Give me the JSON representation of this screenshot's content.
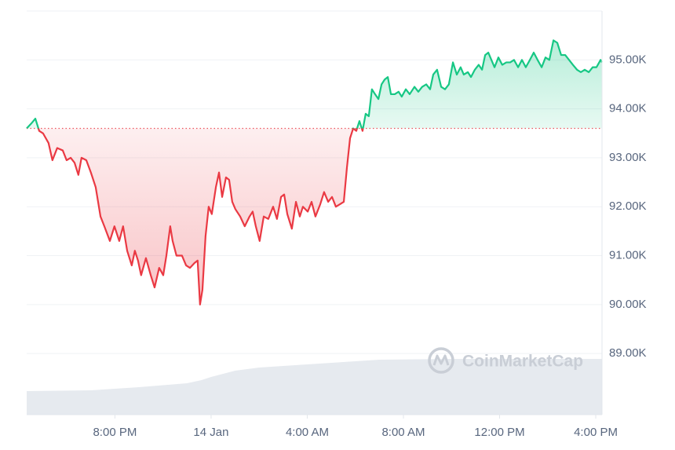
{
  "chart_data": {
    "type": "line",
    "watermark": "CoinMarketCap",
    "baseline": 93600,
    "up_color": "#16c784",
    "down_color": "#ea3943",
    "grid": true,
    "xlim": [
      -7.67,
      16.26
    ],
    "xticks": [
      {
        "value": -4,
        "label": "8:00 PM"
      },
      {
        "value": 0,
        "label": "14 Jan"
      },
      {
        "value": 4,
        "label": "4:00 AM"
      },
      {
        "value": 8,
        "label": "8:00 AM"
      },
      {
        "value": 12,
        "label": "12:00 PM"
      },
      {
        "value": 16,
        "label": "4:00 PM"
      }
    ],
    "ylim": [
      87750,
      96000
    ],
    "yticks": [
      {
        "value": 89000,
        "label": "89.00K"
      },
      {
        "value": 90000,
        "label": "90.00K"
      },
      {
        "value": 91000,
        "label": "91.00K"
      },
      {
        "value": 92000,
        "label": "92.00K"
      },
      {
        "value": 93000,
        "label": "93.00K"
      },
      {
        "value": 94000,
        "label": "94.00K"
      },
      {
        "value": 95000,
        "label": "95.00K"
      }
    ],
    "y2lim": [
      0,
      514
    ],
    "x": [
      -7.67,
      -7.48,
      -7.31,
      -7.15,
      -6.99,
      -6.76,
      -6.6,
      -6.4,
      -6.17,
      -6.01,
      -5.84,
      -5.68,
      -5.52,
      -5.39,
      -5.19,
      -5.0,
      -4.8,
      -4.6,
      -4.44,
      -4.21,
      -4.02,
      -3.82,
      -3.66,
      -3.49,
      -3.3,
      -3.17,
      -3.04,
      -2.91,
      -2.71,
      -2.51,
      -2.35,
      -2.16,
      -1.99,
      -1.86,
      -1.7,
      -1.6,
      -1.44,
      -1.21,
      -1.04,
      -0.88,
      -0.69,
      -0.56,
      -0.46,
      -0.36,
      -0.23,
      -0.1,
      0.03,
      0.2,
      0.33,
      0.46,
      0.62,
      0.75,
      0.88,
      1.01,
      1.21,
      1.4,
      1.6,
      1.73,
      1.86,
      2.02,
      2.19,
      2.38,
      2.58,
      2.74,
      2.91,
      3.04,
      3.17,
      3.36,
      3.53,
      3.69,
      3.82,
      4.02,
      4.18,
      4.34,
      4.54,
      4.7,
      4.87,
      5.03,
      5.19,
      5.36,
      5.52,
      5.65,
      5.78,
      5.91,
      6.04,
      6.17,
      6.3,
      6.43,
      6.56,
      6.69,
      6.82,
      6.96,
      7.09,
      7.22,
      7.35,
      7.48,
      7.64,
      7.8,
      7.93,
      8.1,
      8.26,
      8.46,
      8.62,
      8.78,
      8.95,
      9.11,
      9.24,
      9.4,
      9.57,
      9.73,
      9.89,
      10.06,
      10.22,
      10.38,
      10.51,
      10.68,
      10.81,
      10.97,
      11.13,
      11.27,
      11.4,
      11.53,
      11.66,
      11.79,
      11.95,
      12.11,
      12.28,
      12.44,
      12.6,
      12.77,
      12.93,
      13.09,
      13.26,
      13.42,
      13.58,
      13.75,
      13.91,
      14.07,
      14.24,
      14.4,
      14.56,
      14.73,
      14.89,
      15.05,
      15.22,
      15.38,
      15.54,
      15.71,
      15.87,
      16.03,
      16.2,
      16.26
    ],
    "series": [
      {
        "values": [
          93600,
          93700,
          93800,
          93550,
          93500,
          93300,
          92950,
          93200,
          93150,
          92950,
          93000,
          92900,
          92650,
          93000,
          92950,
          92700,
          92400,
          91800,
          91600,
          91300,
          91600,
          91300,
          91600,
          91100,
          90800,
          91100,
          90900,
          90600,
          90950,
          90600,
          90350,
          90750,
          90600,
          91000,
          91600,
          91300,
          91000,
          91000,
          90800,
          90750,
          90850,
          90900,
          90000,
          90300,
          91400,
          92000,
          91850,
          92400,
          92700,
          92200,
          92600,
          92550,
          92100,
          91950,
          91800,
          91600,
          91800,
          91900,
          91600,
          91300,
          91800,
          91750,
          92000,
          91750,
          92200,
          92250,
          91850,
          91550,
          92100,
          91800,
          92000,
          91900,
          92100,
          91800,
          92050,
          92300,
          92100,
          92200,
          92000,
          92050,
          92100,
          92800,
          93400,
          93600,
          93550,
          93750,
          93550,
          93900,
          93850,
          94400,
          94300,
          94200,
          94500,
          94600,
          94650,
          94300,
          94300,
          94350,
          94250,
          94400,
          94300,
          94450,
          94350,
          94450,
          94500,
          94400,
          94700,
          94800,
          94450,
          94400,
          94500,
          94950,
          94700,
          94850,
          94700,
          94750,
          94650,
          94800,
          94900,
          94800,
          95100,
          95150,
          95000,
          94850,
          95050,
          94900,
          94950,
          94950,
          95000,
          94850,
          95000,
          94850,
          95000,
          95150,
          95000,
          94850,
          95050,
          95000,
          95400,
          95350,
          95100,
          95100,
          95000,
          94900,
          94800,
          94750,
          94800,
          94750,
          94850,
          94850,
          95000,
          94950
        ]
      },
      {
        "axis": "y2",
        "color": "#e6eaef",
        "x": [
          -7.67,
          -5,
          -3,
          -1,
          -0.4,
          0,
          1,
          2,
          4,
          6,
          7,
          10,
          16.26
        ],
        "values": [
          30,
          31,
          35,
          40,
          44,
          48,
          56,
          60,
          64,
          68,
          70,
          71,
          71
        ]
      }
    ]
  }
}
